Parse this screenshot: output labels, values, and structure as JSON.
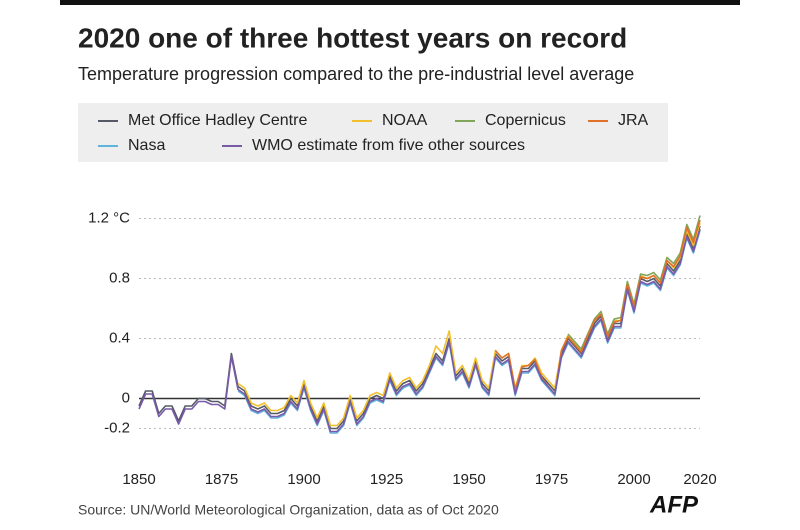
{
  "chart_data": {
    "type": "line",
    "title": "2020 one of three hottest years on record",
    "subtitle": "Temperature progression compared to the pre-industrial level average",
    "source": "Source: UN/World Meteorological Organization, data as of Oct 2020",
    "logo": "AFP",
    "x": [
      1850,
      1852,
      1854,
      1856,
      1858,
      1860,
      1862,
      1864,
      1866,
      1868,
      1870,
      1872,
      1874,
      1876,
      1878,
      1880,
      1882,
      1884,
      1886,
      1888,
      1890,
      1892,
      1894,
      1896,
      1898,
      1900,
      1902,
      1904,
      1906,
      1908,
      1910,
      1912,
      1914,
      1916,
      1918,
      1920,
      1922,
      1924,
      1926,
      1928,
      1930,
      1932,
      1934,
      1936,
      1938,
      1940,
      1942,
      1944,
      1946,
      1948,
      1950,
      1952,
      1954,
      1956,
      1958,
      1960,
      1962,
      1964,
      1966,
      1968,
      1970,
      1972,
      1974,
      1976,
      1978,
      1980,
      1982,
      1984,
      1986,
      1988,
      1990,
      1992,
      1994,
      1996,
      1998,
      2000,
      2002,
      2004,
      2006,
      2008,
      2010,
      2012,
      2014,
      2016,
      2018,
      2020
    ],
    "xlim": [
      1850,
      2020
    ],
    "xticks": [
      1850,
      1875,
      1900,
      1925,
      1950,
      1975,
      2000,
      2020
    ],
    "ylim": [
      -0.31,
      1.29
    ],
    "yticks": [
      -0.2,
      0,
      0.4,
      0.8,
      {
        "value": 1.2,
        "label": "1.2 °C"
      }
    ],
    "grid": true,
    "series": [
      {
        "name": "Met Office Hadley Centre",
        "color": "#555a66",
        "values": [
          -0.05,
          0.05,
          0.05,
          -0.1,
          -0.05,
          -0.05,
          -0.15,
          -0.05,
          -0.05,
          0.0,
          0.0,
          -0.02,
          -0.02,
          -0.05,
          0.3,
          0.08,
          0.05,
          -0.05,
          -0.07,
          -0.05,
          -0.1,
          -0.1,
          -0.08,
          0.0,
          -0.05,
          0.1,
          -0.05,
          -0.15,
          -0.05,
          -0.2,
          -0.2,
          -0.15,
          0.0,
          -0.15,
          -0.1,
          0.0,
          0.02,
          0.0,
          0.15,
          0.05,
          0.1,
          0.12,
          0.05,
          0.1,
          0.2,
          0.3,
          0.25,
          0.4,
          0.15,
          0.2,
          0.1,
          0.25,
          0.1,
          0.05,
          0.3,
          0.25,
          0.28,
          0.05,
          0.2,
          0.2,
          0.25,
          0.15,
          0.1,
          0.05,
          0.3,
          0.4,
          0.35,
          0.3,
          0.4,
          0.5,
          0.55,
          0.4,
          0.5,
          0.5,
          0.75,
          0.6,
          0.8,
          0.78,
          0.8,
          0.75,
          0.9,
          0.85,
          0.92,
          1.1,
          1.0,
          1.15
        ]
      },
      {
        "name": "NOAA",
        "color": "#f2c02d",
        "values": [
          null,
          null,
          null,
          null,
          null,
          null,
          null,
          null,
          null,
          null,
          null,
          null,
          null,
          null,
          null,
          0.1,
          0.07,
          -0.03,
          -0.05,
          -0.03,
          -0.08,
          -0.08,
          -0.06,
          0.02,
          -0.03,
          0.12,
          -0.03,
          -0.13,
          -0.03,
          -0.18,
          -0.18,
          -0.13,
          0.02,
          -0.13,
          -0.08,
          0.02,
          0.04,
          0.02,
          0.17,
          0.07,
          0.12,
          0.14,
          0.07,
          0.12,
          0.22,
          0.35,
          0.3,
          0.45,
          0.17,
          0.22,
          0.12,
          0.27,
          0.12,
          0.07,
          0.32,
          0.27,
          0.3,
          0.07,
          0.22,
          0.22,
          0.27,
          0.17,
          0.12,
          0.07,
          0.32,
          0.42,
          0.37,
          0.32,
          0.42,
          0.52,
          0.57,
          0.42,
          0.52,
          0.52,
          0.77,
          0.62,
          0.82,
          0.8,
          0.82,
          0.77,
          0.92,
          0.87,
          0.94,
          1.12,
          1.02,
          1.17
        ]
      },
      {
        "name": "Copernicus",
        "color": "#7fa65a",
        "values": [
          null,
          null,
          null,
          null,
          null,
          null,
          null,
          null,
          null,
          null,
          null,
          null,
          null,
          null,
          null,
          null,
          null,
          null,
          null,
          null,
          null,
          null,
          null,
          null,
          null,
          null,
          null,
          null,
          null,
          null,
          null,
          null,
          null,
          null,
          null,
          null,
          null,
          null,
          null,
          null,
          null,
          null,
          null,
          null,
          null,
          null,
          null,
          null,
          null,
          null,
          null,
          null,
          null,
          null,
          null,
          null,
          null,
          null,
          null,
          null,
          null,
          null,
          null,
          null,
          null,
          0.43,
          0.38,
          0.33,
          0.43,
          0.53,
          0.58,
          0.43,
          0.53,
          0.54,
          0.78,
          0.63,
          0.83,
          0.82,
          0.84,
          0.79,
          0.94,
          0.9,
          0.97,
          1.16,
          1.06,
          1.22
        ]
      },
      {
        "name": "JRA",
        "color": "#e0702a",
        "values": [
          null,
          null,
          null,
          null,
          null,
          null,
          null,
          null,
          null,
          null,
          null,
          null,
          null,
          null,
          null,
          null,
          null,
          null,
          null,
          null,
          null,
          null,
          null,
          null,
          null,
          null,
          null,
          null,
          null,
          null,
          null,
          null,
          null,
          null,
          null,
          null,
          null,
          null,
          null,
          null,
          null,
          null,
          null,
          null,
          null,
          null,
          null,
          null,
          null,
          null,
          null,
          null,
          null,
          null,
          0.32,
          0.27,
          0.3,
          0.06,
          0.21,
          0.22,
          0.26,
          0.14,
          0.08,
          0.02,
          0.32,
          0.41,
          0.36,
          0.31,
          0.42,
          0.52,
          0.56,
          0.41,
          0.51,
          0.52,
          0.76,
          0.61,
          0.81,
          0.8,
          0.82,
          0.77,
          0.92,
          0.88,
          0.95,
          1.14,
          1.04,
          1.19
        ]
      },
      {
        "name": "Nasa",
        "color": "#5fb4de",
        "values": [
          null,
          null,
          null,
          null,
          null,
          null,
          null,
          null,
          null,
          null,
          null,
          null,
          null,
          null,
          null,
          0.05,
          0.02,
          -0.08,
          -0.1,
          -0.08,
          -0.13,
          -0.13,
          -0.11,
          -0.03,
          -0.08,
          0.07,
          -0.08,
          -0.18,
          -0.08,
          -0.23,
          -0.23,
          -0.18,
          -0.03,
          -0.18,
          -0.13,
          -0.03,
          -0.01,
          -0.03,
          0.12,
          0.02,
          0.07,
          0.09,
          0.02,
          0.07,
          0.17,
          0.27,
          0.22,
          0.37,
          0.12,
          0.17,
          0.07,
          0.22,
          0.07,
          0.02,
          0.27,
          0.22,
          0.25,
          0.02,
          0.17,
          0.17,
          0.22,
          0.12,
          0.07,
          0.02,
          0.27,
          0.37,
          0.32,
          0.27,
          0.37,
          0.47,
          0.52,
          0.37,
          0.47,
          0.47,
          0.72,
          0.57,
          0.77,
          0.75,
          0.77,
          0.72,
          0.87,
          0.82,
          0.89,
          1.07,
          0.97,
          1.12
        ]
      },
      {
        "name": "WMO estimate from five other sources",
        "color": "#7a5aa8",
        "values": [
          -0.07,
          0.03,
          0.03,
          -0.12,
          -0.07,
          -0.07,
          -0.17,
          -0.07,
          -0.07,
          -0.02,
          -0.02,
          -0.04,
          -0.04,
          -0.07,
          0.28,
          0.06,
          0.03,
          -0.07,
          -0.09,
          -0.07,
          -0.12,
          -0.12,
          -0.1,
          -0.02,
          -0.07,
          0.08,
          -0.07,
          -0.17,
          -0.07,
          -0.22,
          -0.22,
          -0.17,
          -0.02,
          -0.17,
          -0.12,
          -0.02,
          0.0,
          -0.02,
          0.13,
          0.03,
          0.08,
          0.1,
          0.03,
          0.08,
          0.18,
          0.28,
          0.23,
          0.38,
          0.13,
          0.18,
          0.08,
          0.23,
          0.08,
          0.03,
          0.28,
          0.23,
          0.26,
          0.03,
          0.18,
          0.18,
          0.23,
          0.13,
          0.08,
          0.03,
          0.28,
          0.38,
          0.33,
          0.28,
          0.38,
          0.48,
          0.53,
          0.38,
          0.48,
          0.48,
          0.73,
          0.58,
          0.78,
          0.76,
          0.78,
          0.73,
          0.88,
          0.83,
          0.9,
          1.08,
          0.98,
          1.13
        ]
      }
    ]
  }
}
